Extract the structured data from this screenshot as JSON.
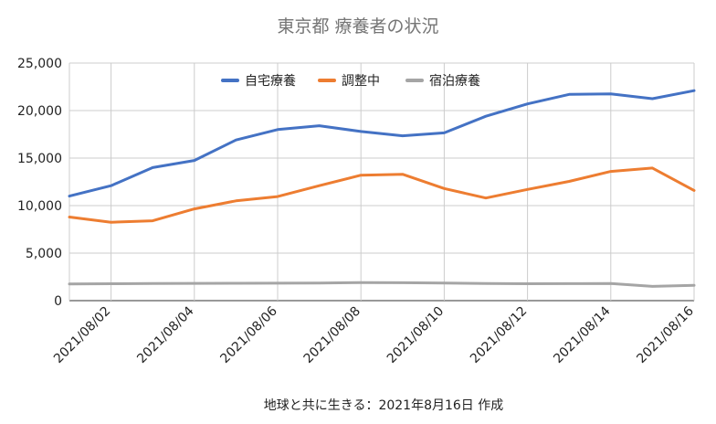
{
  "chart_data": {
    "type": "line",
    "title": "東京都 療養者の状況",
    "footer": "地球と共に生きる：2021年8月16日 作成",
    "x": [
      "2021/08/01",
      "2021/08/02",
      "2021/08/03",
      "2021/08/04",
      "2021/08/05",
      "2021/08/06",
      "2021/08/07",
      "2021/08/08",
      "2021/08/09",
      "2021/08/10",
      "2021/08/11",
      "2021/08/12",
      "2021/08/13",
      "2021/08/14",
      "2021/08/15",
      "2021/08/16"
    ],
    "x_tick_labels": [
      "2021/08/02",
      "2021/08/04",
      "2021/08/06",
      "2021/08/08",
      "2021/08/10",
      "2021/08/12",
      "2021/08/14",
      "2021/08/16"
    ],
    "y_tick_labels": [
      "0",
      "5,000",
      "10,000",
      "15,000",
      "20,000",
      "25,000"
    ],
    "ylim": [
      0,
      25000
    ],
    "grid": true,
    "legend_position": "top",
    "series": [
      {
        "name": "自宅療養",
        "color": "#4472C4",
        "values": [
          11000,
          12100,
          14000,
          14750,
          16900,
          18000,
          18400,
          17800,
          17350,
          17650,
          19400,
          20700,
          21700,
          21750,
          21250,
          22100
        ]
      },
      {
        "name": "調整中",
        "color": "#ED7D31",
        "values": [
          8800,
          8250,
          8400,
          9650,
          10500,
          10950,
          12100,
          13200,
          13300,
          11800,
          10800,
          11700,
          12550,
          13600,
          13950,
          11600
        ]
      },
      {
        "name": "宿泊療養",
        "color": "#A5A5A5",
        "values": [
          1750,
          1780,
          1800,
          1820,
          1830,
          1840,
          1860,
          1900,
          1880,
          1850,
          1800,
          1780,
          1790,
          1800,
          1500,
          1620
        ]
      }
    ]
  }
}
